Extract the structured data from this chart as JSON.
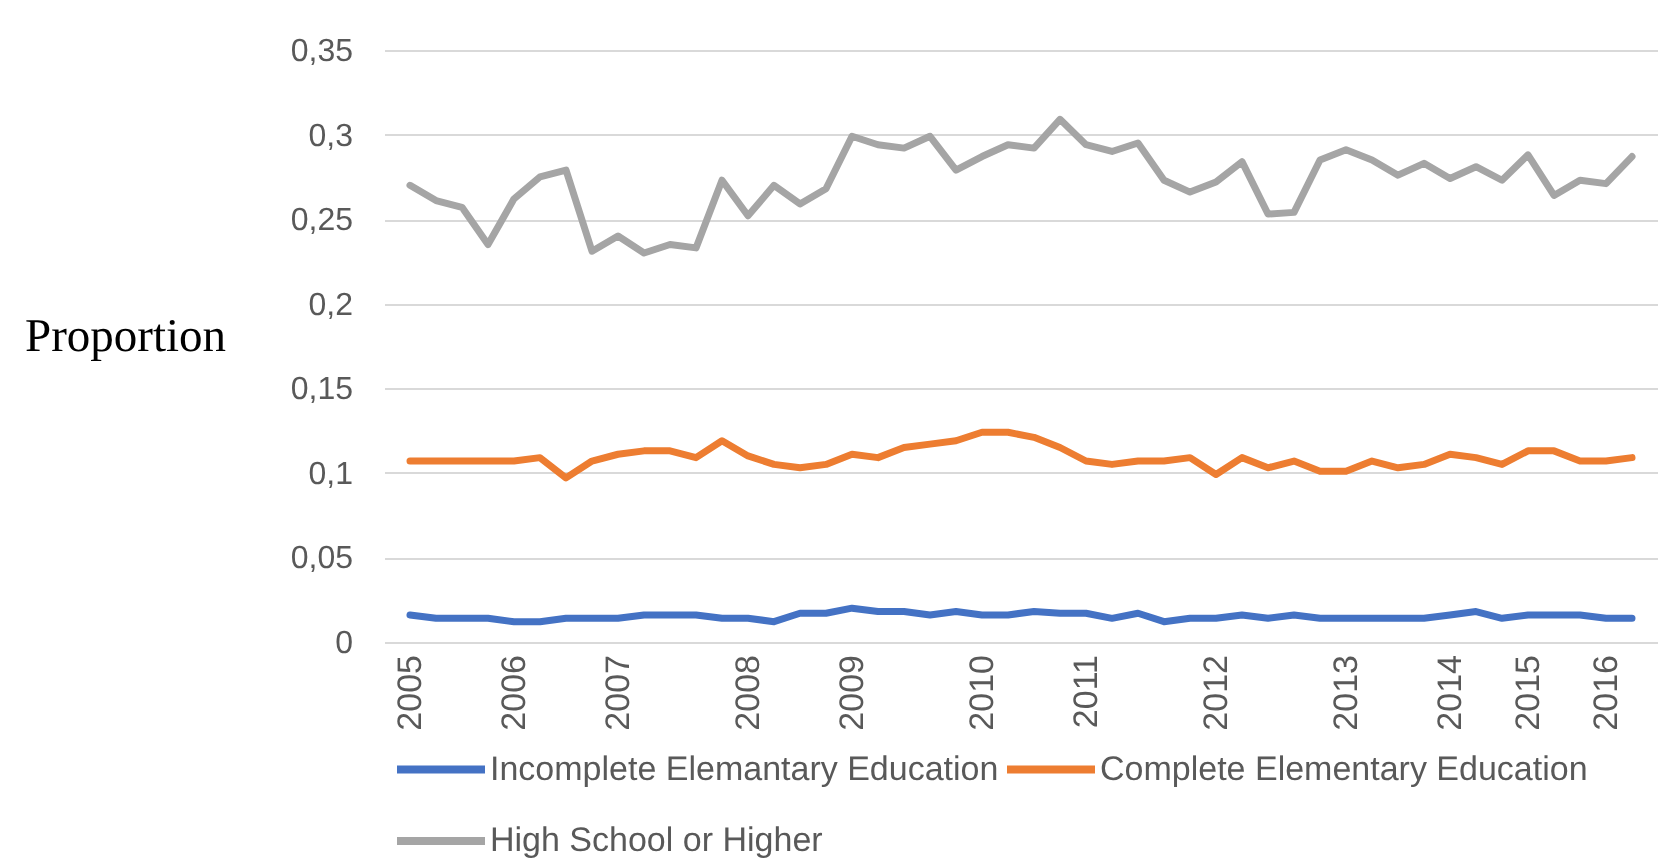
{
  "chart_data": {
    "type": "line",
    "ylabel": "Proportion",
    "categories": [
      "2005",
      null,
      null,
      null,
      "2006",
      null,
      null,
      null,
      "2007",
      null,
      null,
      null,
      null,
      "2008",
      null,
      null,
      null,
      "2009",
      null,
      null,
      null,
      null,
      "2010",
      null,
      null,
      null,
      "2011",
      null,
      null,
      null,
      null,
      "2012",
      null,
      null,
      null,
      null,
      "2013",
      null,
      null,
      null,
      "2014",
      null,
      null,
      "2015",
      null,
      null,
      "2016",
      null
    ],
    "series": [
      {
        "name": "Incomplete Elemantary Education",
        "color": "#4472c4",
        "values": [
          0.016,
          0.014,
          0.014,
          0.014,
          0.012,
          0.012,
          0.014,
          0.014,
          0.014,
          0.016,
          0.016,
          0.016,
          0.014,
          0.014,
          0.012,
          0.017,
          0.017,
          0.02,
          0.018,
          0.018,
          0.016,
          0.018,
          0.016,
          0.016,
          0.018,
          0.017,
          0.017,
          0.014,
          0.017,
          0.012,
          0.014,
          0.014,
          0.016,
          0.014,
          0.016,
          0.014,
          0.014,
          0.014,
          0.014,
          0.014,
          0.016,
          0.018,
          0.014,
          0.016,
          0.016,
          0.016,
          0.014,
          0.014
        ]
      },
      {
        "name": "Complete Elementary Education",
        "color": "#ed7d31",
        "values": [
          0.107,
          0.107,
          0.107,
          0.107,
          0.107,
          0.109,
          0.097,
          0.107,
          0.111,
          0.113,
          0.113,
          0.109,
          0.119,
          0.11,
          0.105,
          0.103,
          0.105,
          0.111,
          0.109,
          0.115,
          0.117,
          0.119,
          0.124,
          0.124,
          0.121,
          0.115,
          0.107,
          0.105,
          0.107,
          0.107,
          0.109,
          0.099,
          0.109,
          0.103,
          0.107,
          0.101,
          0.101,
          0.107,
          0.103,
          0.105,
          0.111,
          0.109,
          0.105,
          0.113,
          0.113,
          0.107,
          0.107,
          0.109
        ]
      },
      {
        "name": "High School or Higher",
        "color": "#a5a5a5",
        "values": [
          0.27,
          0.261,
          0.257,
          0.235,
          0.262,
          0.275,
          0.279,
          0.231,
          0.24,
          0.23,
          0.235,
          0.233,
          0.273,
          0.252,
          0.27,
          0.259,
          0.268,
          0.299,
          0.294,
          0.292,
          0.299,
          0.279,
          0.287,
          0.294,
          0.292,
          0.309,
          0.294,
          0.29,
          0.295,
          0.273,
          0.266,
          0.272,
          0.284,
          0.253,
          0.254,
          0.285,
          0.291,
          0.285,
          0.276,
          0.283,
          0.274,
          0.281,
          0.273,
          0.288,
          0.264,
          0.273,
          0.271,
          0.287
        ]
      }
    ],
    "ylim": [
      0,
      0.35
    ],
    "yticks": [
      0,
      {
        "value": 0.05,
        "label": "0,05"
      },
      {
        "value": 0.1,
        "label": "0,1"
      },
      {
        "value": 0.15,
        "label": "0,15"
      },
      {
        "value": 0.2,
        "label": "0,2"
      },
      {
        "value": 0.25,
        "label": "0,25"
      },
      {
        "value": 0.3,
        "label": "0,3"
      },
      {
        "value": 0.35,
        "label": "0,35"
      }
    ],
    "grid": "y",
    "legend": "bottom"
  }
}
